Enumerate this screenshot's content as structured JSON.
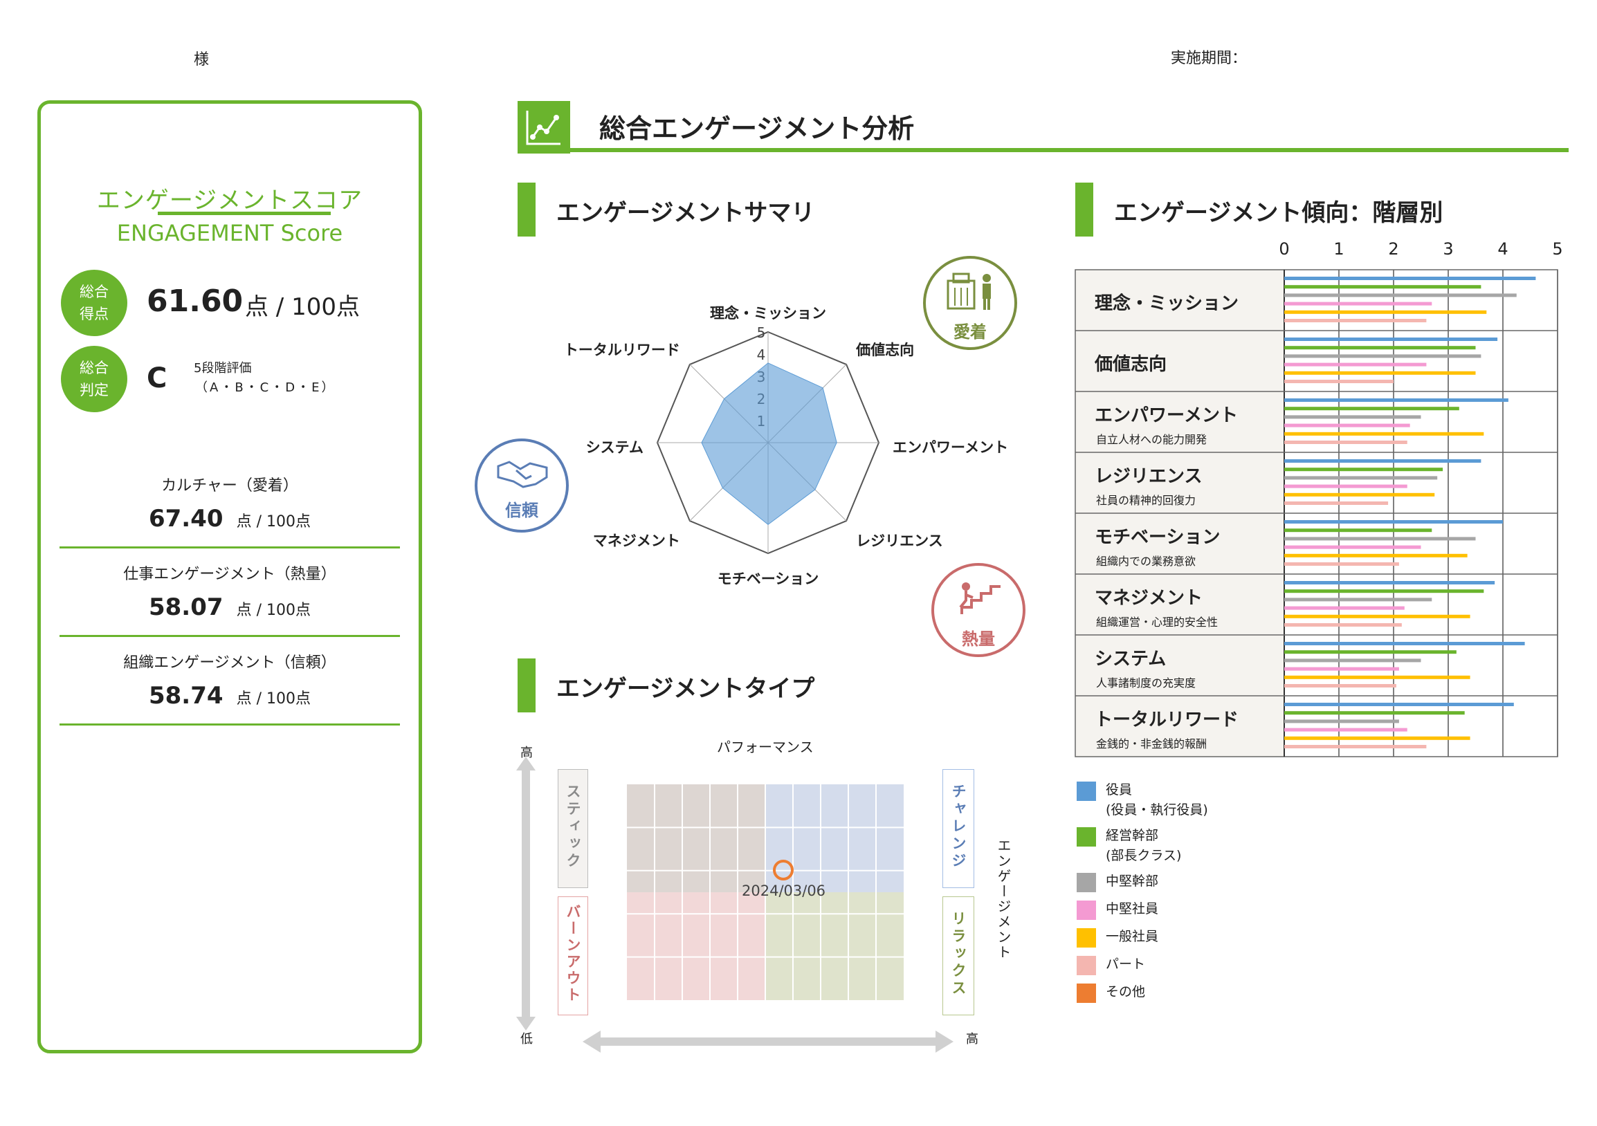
{
  "header": {
    "name_suffix": "様",
    "period_label": "実施期間："
  },
  "left_panel": {
    "title": "エンゲージメントスコア",
    "subtitle": "ENGAGEMENT Score",
    "total_label": "総合\n得点",
    "total_score": "61.60",
    "total_unit": "点 / 100点",
    "grade_label": "総合\n判定",
    "grade": "C",
    "grade_note1": "5段階評価",
    "grade_note2": "（A・B・C・D・E）",
    "categories": [
      {
        "label": "カルチャー（愛着）",
        "value": "67.40",
        "unit": "点 / 100点"
      },
      {
        "label": "仕事エンゲージメント（熱量）",
        "value": "58.07",
        "unit": "点 / 100点"
      },
      {
        "label": "組織エンゲージメント（信頼）",
        "value": "58.74",
        "unit": "点 / 100点"
      }
    ]
  },
  "main_title": "総合エンゲージメント分析",
  "summary": {
    "title": "エンゲージメントサマリ",
    "badges": {
      "attachment": "愛着",
      "trust": "信頼",
      "heat": "熱量"
    },
    "tick_labels": [
      "1",
      "2",
      "3",
      "4",
      "5"
    ]
  },
  "type": {
    "title": "エンゲージメントタイプ",
    "x_axis": "パフォーマンス",
    "y_axis": "エンゲージメント",
    "high_top": "高",
    "low": "低",
    "high_right": "高",
    "quadrants": {
      "stick": "スティック",
      "burnout": "バーンアウト",
      "challenge": "チャレンジ",
      "relax": "リラックス"
    },
    "marker_label": "2024/03/06"
  },
  "trend": {
    "title": "エンゲージメント傾向：階層別",
    "axis_ticks": [
      "0",
      "1",
      "2",
      "3",
      "4",
      "5"
    ],
    "rows": [
      {
        "label": "理念・ミッション",
        "sub": ""
      },
      {
        "label": "価値志向",
        "sub": ""
      },
      {
        "label": "エンパワーメント",
        "sub": "自立人材への能力開発"
      },
      {
        "label": "レジリエンス",
        "sub": "社員の精神的回復力"
      },
      {
        "label": "モチベーション",
        "sub": "組織内での業務意欲"
      },
      {
        "label": "マネジメント",
        "sub": "組織運営・心理的安全性"
      },
      {
        "label": "システム",
        "sub": "人事諸制度の充実度"
      },
      {
        "label": "トータルリワード",
        "sub": "金銭的・非金銭的報酬"
      }
    ],
    "legend": [
      {
        "label": "役員",
        "sub": "(役員・執行役員)",
        "color": "#5b9bd5"
      },
      {
        "label": "経営幹部",
        "sub": "(部長クラス)",
        "color": "#6ab42d"
      },
      {
        "label": "中堅幹部",
        "sub": "",
        "color": "#a6a6a6"
      },
      {
        "label": "中堅社員",
        "sub": "",
        "color": "#f49ad2"
      },
      {
        "label": "一般社員",
        "sub": "",
        "color": "#ffc000"
      },
      {
        "label": "パート",
        "sub": "",
        "color": "#f4b6b0"
      },
      {
        "label": "その他",
        "sub": "",
        "color": "#ed7d31"
      }
    ]
  },
  "chart_data": [
    {
      "type": "radar",
      "title": "エンゲージメントサマリ",
      "categories": [
        "理念・ミッション",
        "価値志向",
        "エンパワーメント",
        "レジリエンス",
        "モチベーション",
        "マネジメント",
        "システム",
        "トータルリワード"
      ],
      "values": [
        3.6,
        3.5,
        3.1,
        3.0,
        3.7,
        2.9,
        3.0,
        2.8
      ],
      "rlim": [
        0,
        5
      ],
      "color": "#5b9bd5"
    },
    {
      "type": "bar",
      "orientation": "horizontal",
      "title": "エンゲージメント傾向：階層別",
      "categories": [
        "理念・ミッション",
        "価値志向",
        "エンパワーメント",
        "レジリエンス",
        "モチベーション",
        "マネジメント",
        "システム",
        "トータルリワード"
      ],
      "xlim": [
        0,
        5
      ],
      "series": [
        {
          "name": "役員",
          "values": [
            4.6,
            3.9,
            4.1,
            3.6,
            4.0,
            3.85,
            4.4,
            4.2
          ]
        },
        {
          "name": "経営幹部",
          "values": [
            3.6,
            3.5,
            3.2,
            2.9,
            2.7,
            3.65,
            3.15,
            3.3
          ]
        },
        {
          "name": "中堅幹部",
          "values": [
            4.25,
            3.6,
            2.5,
            2.8,
            3.5,
            2.7,
            2.5,
            2.1
          ]
        },
        {
          "name": "中堅社員",
          "values": [
            2.7,
            2.6,
            2.3,
            2.25,
            2.5,
            2.2,
            2.1,
            2.25
          ]
        },
        {
          "name": "一般社員",
          "values": [
            3.7,
            3.5,
            3.65,
            2.75,
            3.35,
            3.4,
            3.4,
            3.4
          ]
        },
        {
          "name": "パート",
          "values": [
            2.6,
            2.0,
            2.25,
            1.9,
            2.1,
            2.15,
            2.05,
            2.6
          ]
        },
        {
          "name": "その他",
          "values": [
            0,
            0,
            0,
            0,
            0,
            0,
            0,
            0
          ]
        }
      ]
    }
  ]
}
